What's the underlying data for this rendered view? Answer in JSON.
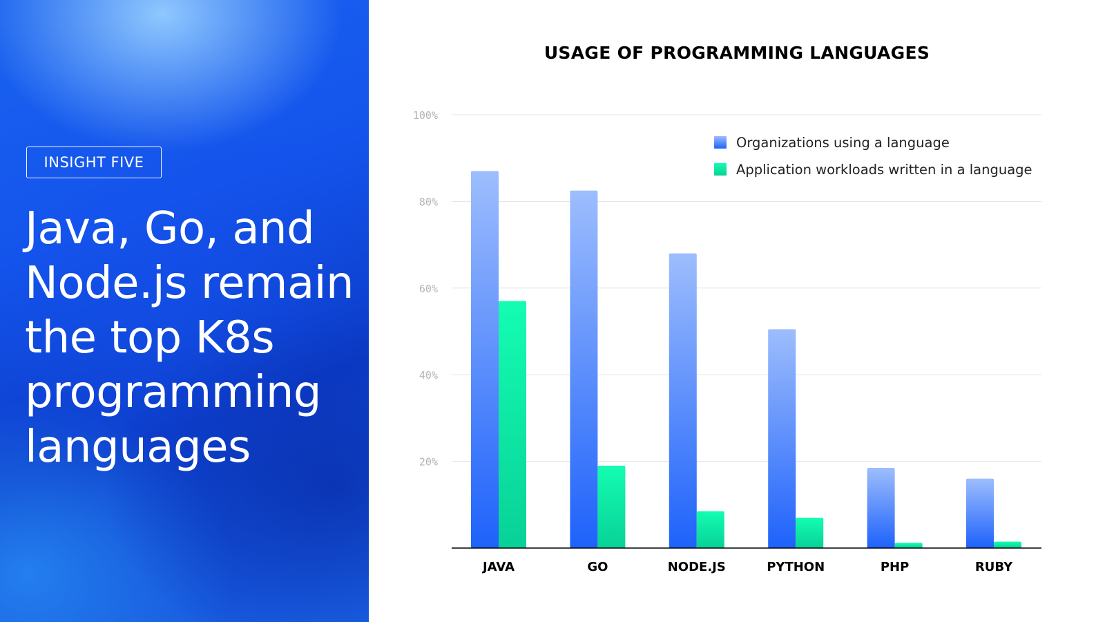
{
  "slide": {
    "badge": "INSIGHT FIVE",
    "headline": "Java, Go, and Node.js remain the top K8s programming languages"
  },
  "chart_data": {
    "type": "bar",
    "title": "USAGE OF PROGRAMMING LANGUAGES",
    "categories": [
      "JAVA",
      "GO",
      "NODE.JS",
      "PYTHON",
      "PHP",
      "RUBY"
    ],
    "series": [
      {
        "name": "Organizations using a language",
        "values": [
          87,
          82.5,
          68,
          50.5,
          18.5,
          16
        ],
        "color": "#3d7cf9"
      },
      {
        "name": "Application workloads written in a language",
        "values": [
          57,
          19,
          8.5,
          7,
          1.2,
          1.5
        ],
        "color": "#0fe8a8"
      }
    ],
    "ylim": [
      0,
      100
    ],
    "yticks": [
      "100%",
      "80%",
      "60%",
      "40%",
      "20%"
    ],
    "ytick_values": [
      100,
      80,
      60,
      40,
      20
    ],
    "grid": true,
    "legend_position": "top-right"
  }
}
